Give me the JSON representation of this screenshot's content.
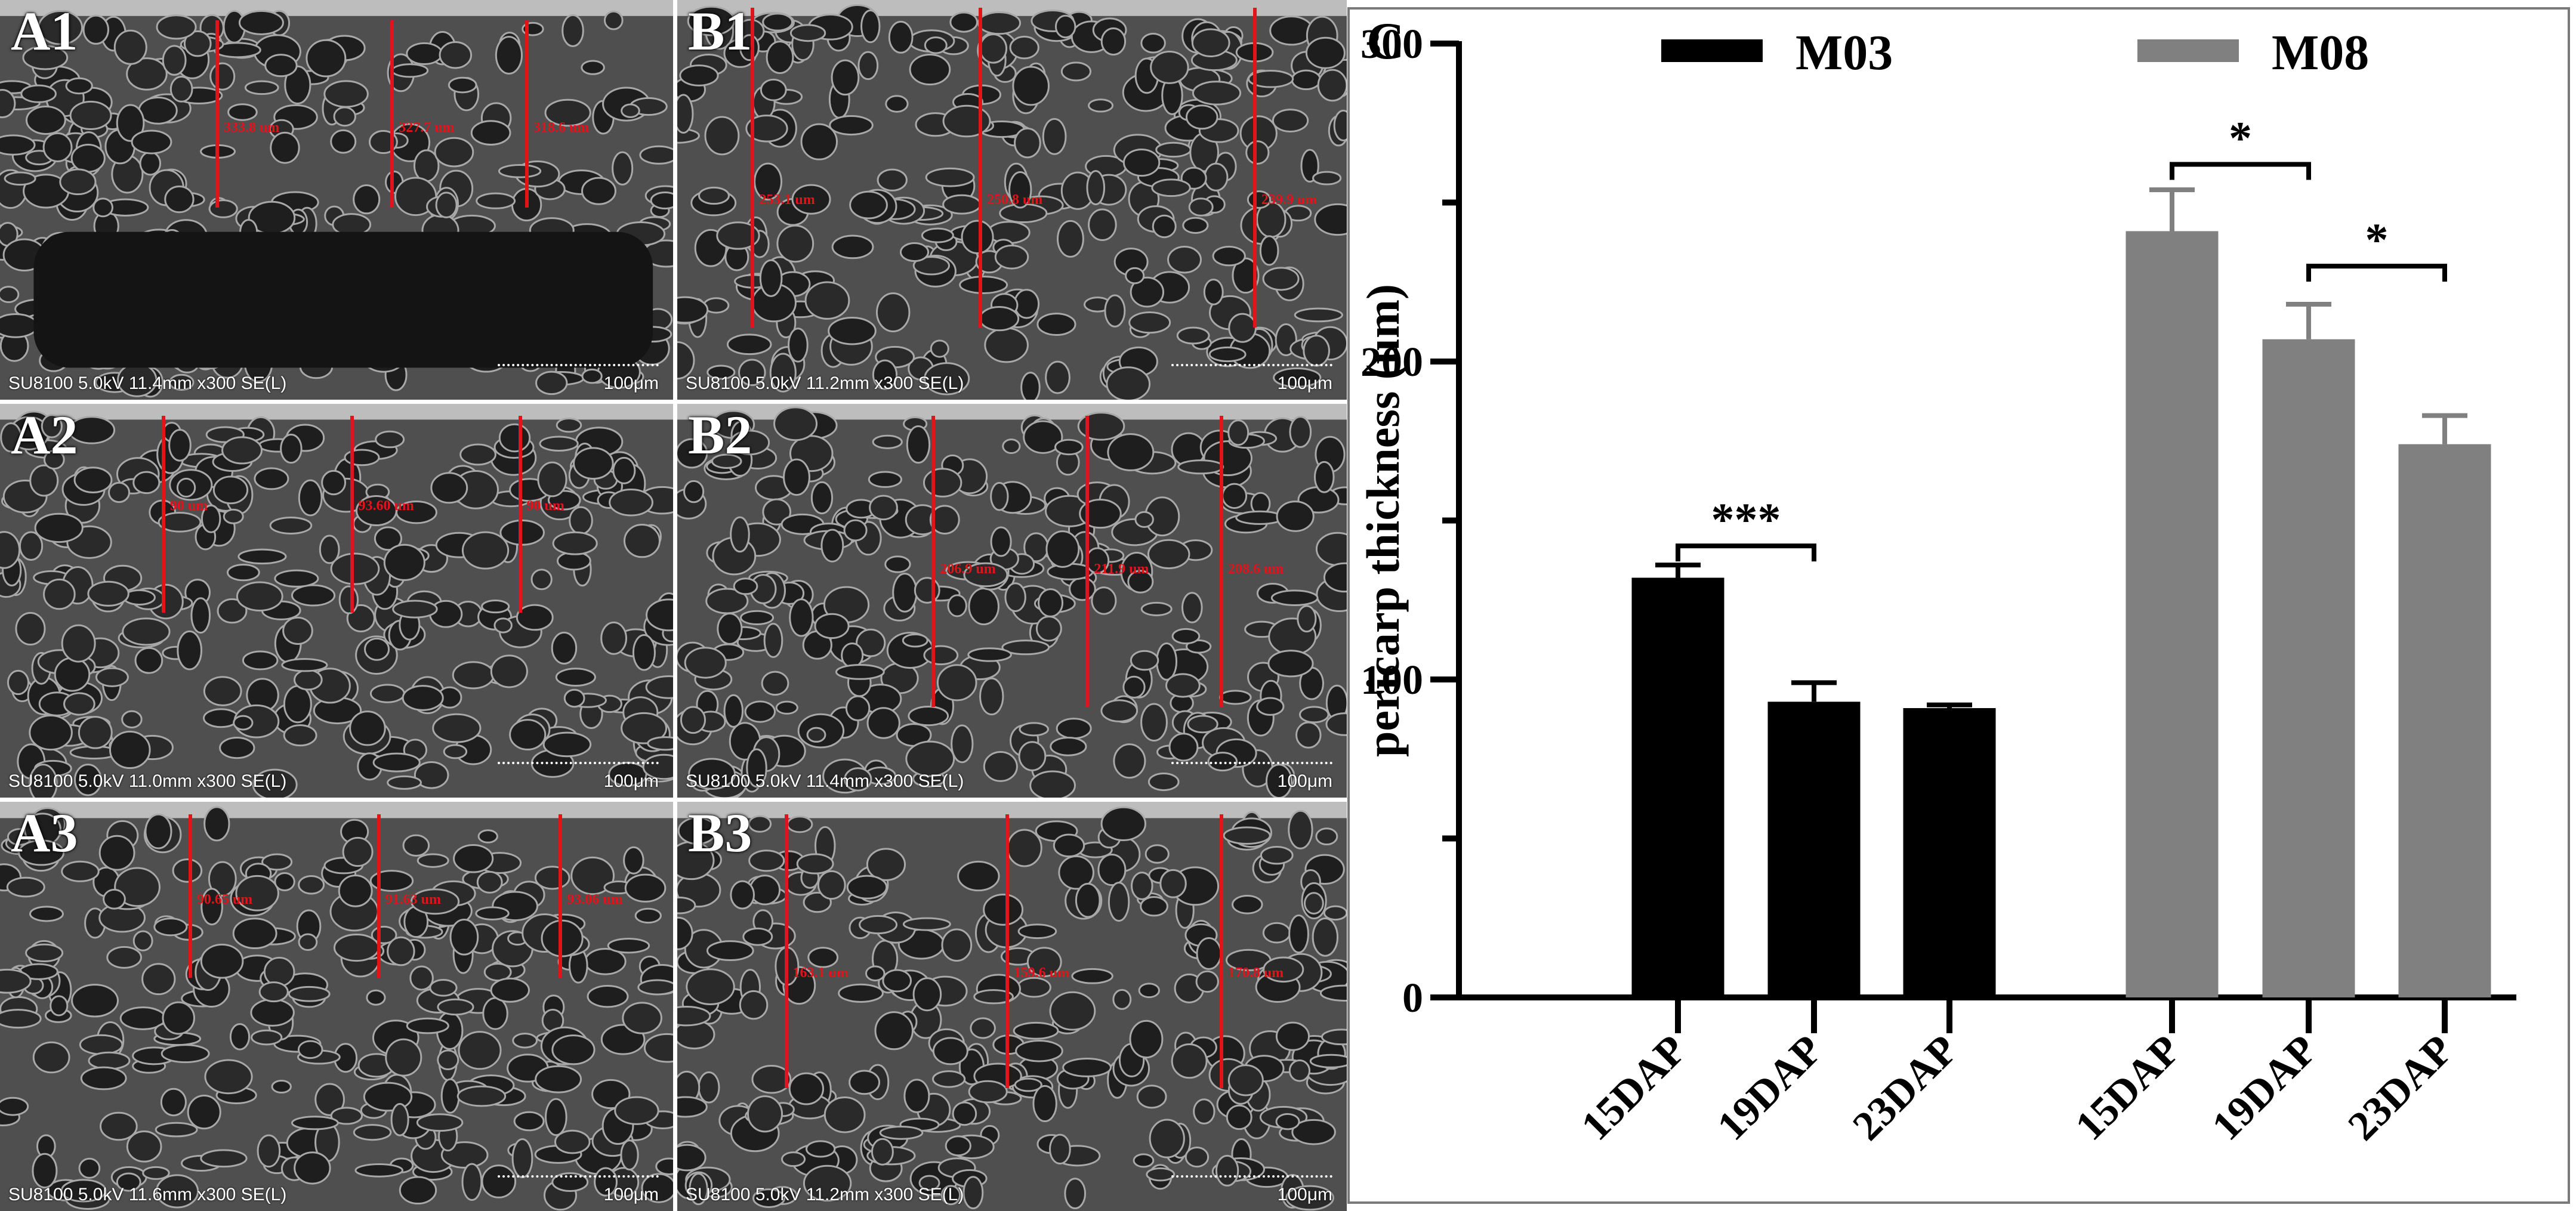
{
  "panels": [
    {
      "id": "A1",
      "info": "SU8100 5.0kV 11.4mm x300 SE(L)",
      "scale": "100μm",
      "measures": [
        "333.8 um",
        "327.7 um",
        "318.6 um"
      ]
    },
    {
      "id": "B1",
      "info": "SU8100 5.0kV 11.2mm x300 SE(L)",
      "scale": "100μm",
      "measures": [
        "253.1 um",
        "250.8 um",
        "239.9 um"
      ]
    },
    {
      "id": "A2",
      "info": "SU8100 5.0kV 11.0mm x300 SE(L)",
      "scale": "100μm",
      "measures": [
        "90 um",
        "93.60 um",
        "90 um"
      ]
    },
    {
      "id": "B2",
      "info": "SU8100 5.0kV 11.4mm x300 SE(L)",
      "scale": "100μm",
      "measures": [
        "206.9 um",
        "211.9 um",
        "208.6 um"
      ]
    },
    {
      "id": "A3",
      "info": "SU8100 5.0kV 11.6mm x300 SE(L)",
      "scale": "100μm",
      "measures": [
        "90.65 um",
        "91.63 um",
        "93.06 um"
      ]
    },
    {
      "id": "B3",
      "info": "SU8100 5.0kV 11.2mm x300 SE(L)",
      "scale": "100μm",
      "measures": [
        "163.1 um",
        "159.6 um",
        "170.8 um"
      ]
    }
  ],
  "chart_data": {
    "type": "bar",
    "panel_label": "C",
    "ylabel": "pericarp thickness (um)",
    "xlabel": "",
    "ylim": [
      0,
      300
    ],
    "yticks": [
      0,
      100,
      200,
      300
    ],
    "categories": [
      "15DAP",
      "19DAP",
      "23DAP"
    ],
    "series": [
      {
        "name": "M03",
        "color": "#000000",
        "values": [
          132,
          93,
          91
        ],
        "errors": [
          4,
          6,
          1
        ]
      },
      {
        "name": "M08",
        "color": "#808080",
        "values": [
          241,
          207,
          174
        ],
        "errors": [
          13,
          11,
          9
        ]
      }
    ],
    "significance": [
      {
        "series": "M03",
        "from": 0,
        "to": 1,
        "label": "***"
      },
      {
        "series": "M08",
        "from": 0,
        "to": 1,
        "label": "*"
      },
      {
        "series": "M08",
        "from": 1,
        "to": 2,
        "label": "*"
      }
    ],
    "legend": "top",
    "grid": false
  }
}
